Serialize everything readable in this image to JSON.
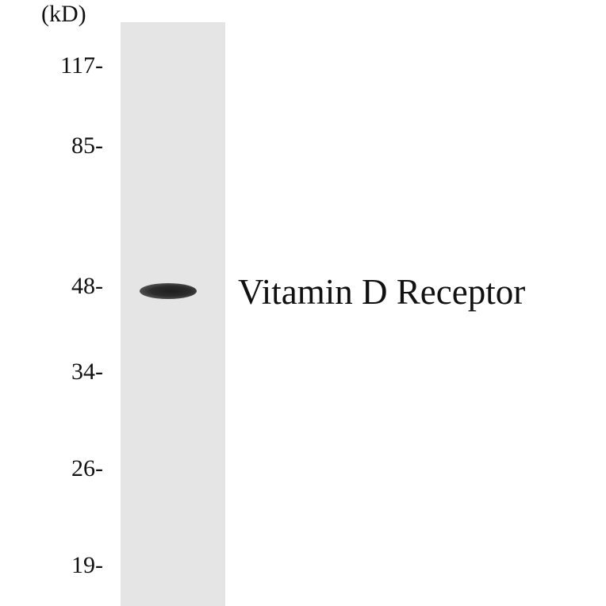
{
  "blot": {
    "unit_label": "(kD)",
    "markers": [
      {
        "label": "117-",
        "kd": 117
      },
      {
        "label": "85-",
        "kd": 85
      },
      {
        "label": "48-",
        "kd": 48
      },
      {
        "label": "34-",
        "kd": 34
      },
      {
        "label": "26-",
        "kd": 26
      },
      {
        "label": "19-",
        "kd": 19
      }
    ],
    "lane_color": "#e5e5e5",
    "band_color": "#222222",
    "protein_label": "Vitamin D Receptor"
  }
}
